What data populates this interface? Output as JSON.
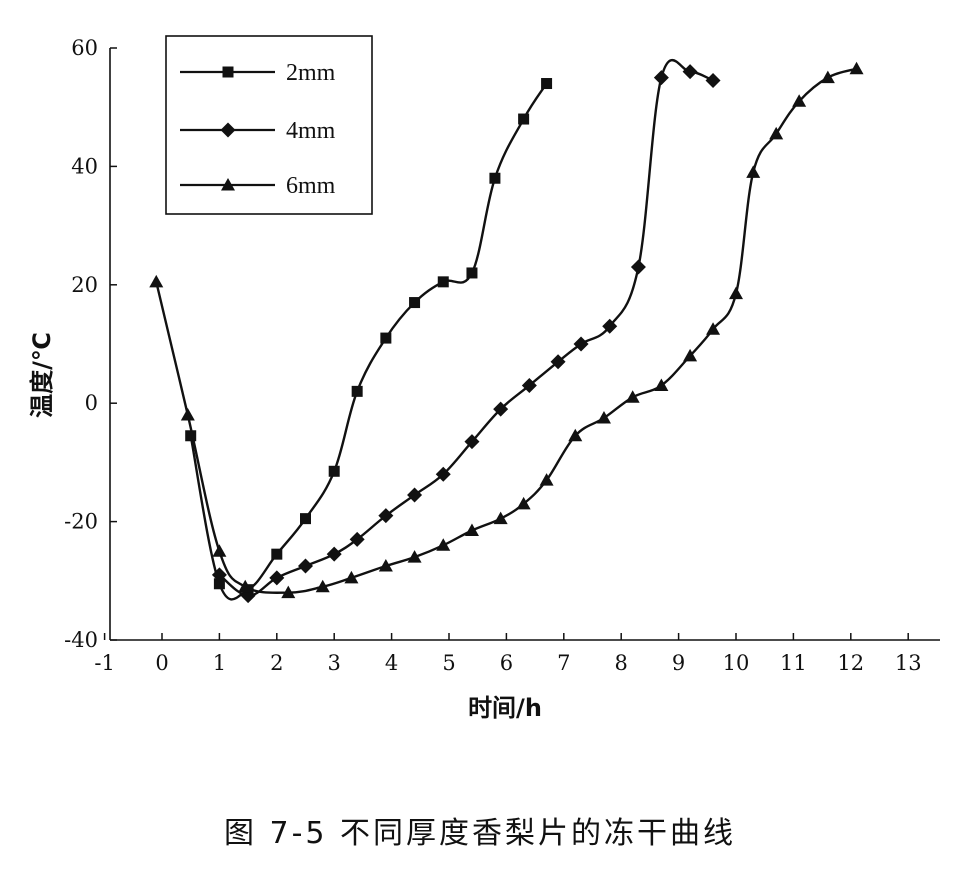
{
  "chart_data": {
    "type": "line",
    "title": "",
    "xlabel": "时间/h",
    "ylabel": "温度/℃",
    "xlim": [
      -1,
      13.5
    ],
    "ylim": [
      -40,
      60
    ],
    "xticks": [
      -1,
      0,
      1,
      2,
      3,
      4,
      5,
      6,
      7,
      8,
      9,
      10,
      11,
      12,
      13
    ],
    "yticks": [
      -40,
      -20,
      0,
      20,
      40,
      60
    ],
    "grid": false,
    "legend": "top-left",
    "series": [
      {
        "name": "2mm",
        "marker": "square",
        "x": [
          0.5,
          1.0,
          1.5,
          2.0,
          2.5,
          3.0,
          3.4,
          3.9,
          4.4,
          4.9,
          5.4,
          5.8,
          6.3,
          6.7
        ],
        "y": [
          -5.5,
          -30.5,
          -31.5,
          -25.5,
          -19.5,
          -11.5,
          2,
          11,
          17,
          20.5,
          22,
          38,
          48,
          54
        ]
      },
      {
        "name": "4mm",
        "marker": "diamond",
        "x": [
          1.0,
          1.5,
          2.0,
          2.5,
          3.0,
          3.4,
          3.9,
          4.4,
          4.9,
          5.4,
          5.9,
          6.4,
          6.9,
          7.3,
          7.8,
          8.3,
          8.7,
          9.2,
          9.6
        ],
        "y": [
          -29,
          -32.5,
          -29.5,
          -27.5,
          -25.5,
          -23,
          -19,
          -15.5,
          -12,
          -6.5,
          -1,
          3,
          7,
          10,
          13,
          23,
          55,
          56,
          54.5
        ]
      },
      {
        "name": "6mm",
        "marker": "triangle",
        "x": [
          -0.1,
          0.45,
          1.0,
          1.45,
          2.2,
          2.8,
          3.3,
          3.9,
          4.4,
          4.9,
          5.4,
          5.9,
          6.3,
          6.7,
          7.2,
          7.7,
          8.2,
          8.7,
          9.2,
          9.6,
          10.0,
          10.3,
          10.7,
          11.1,
          11.6,
          12.1
        ],
        "y": [
          20.5,
          -2,
          -25,
          -31,
          -32,
          -31,
          -29.5,
          -27.5,
          -26,
          -24,
          -21.5,
          -19.5,
          -17,
          -13,
          -5.5,
          -2.5,
          1,
          3,
          8,
          12.5,
          18.5,
          39,
          45.5,
          51,
          55,
          56.5
        ]
      }
    ]
  },
  "caption": "图 7-5   不同厚度香梨片的冻干曲线",
  "colors": {
    "line": "#111111",
    "background": "#ffffff"
  }
}
